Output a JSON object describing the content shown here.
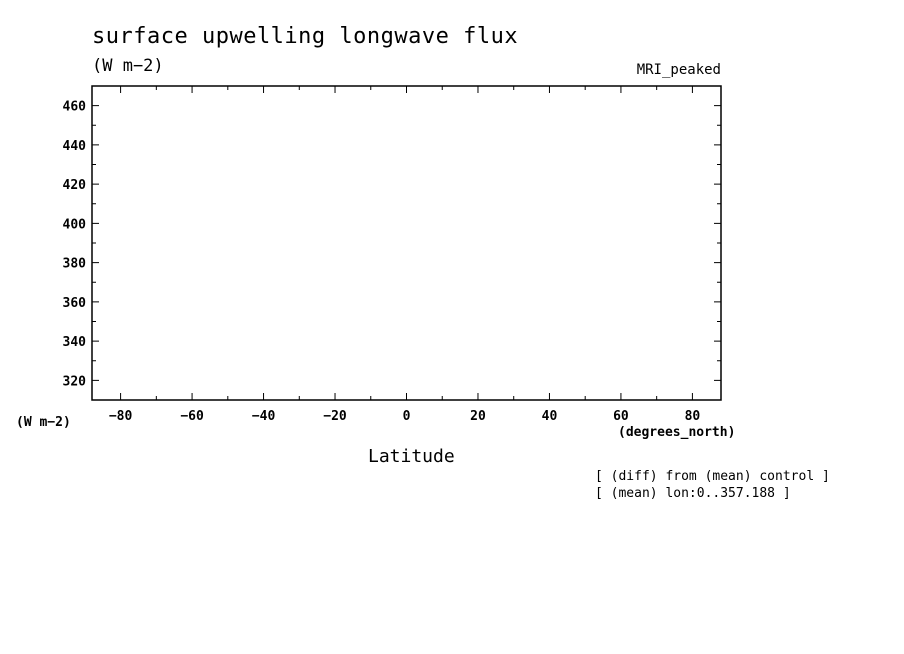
{
  "chart_data": {
    "type": "line",
    "title": "surface upwelling longwave flux",
    "units": "(W m−2)",
    "model": "MRI_peaked",
    "ylabel": "(W m−2)",
    "xlabel": "Latitude",
    "xunits": "(degrees_north)",
    "annotations": [
      "[ (diff) from (mean) control ]",
      "[ (mean) lon:0..357.188 ]"
    ],
    "xlim": [
      -88,
      88
    ],
    "ylim": [
      310,
      470
    ],
    "xticks": [
      -80,
      -60,
      -40,
      -20,
      0,
      20,
      40,
      60,
      80
    ],
    "xticks_minor_step": 10,
    "yticks": [
      320,
      340,
      360,
      380,
      400,
      420,
      440,
      460
    ],
    "yticks_minor_step": 10,
    "grid": false,
    "series": []
  },
  "colors": {
    "axis": "#000000",
    "background": "#ffffff"
  }
}
